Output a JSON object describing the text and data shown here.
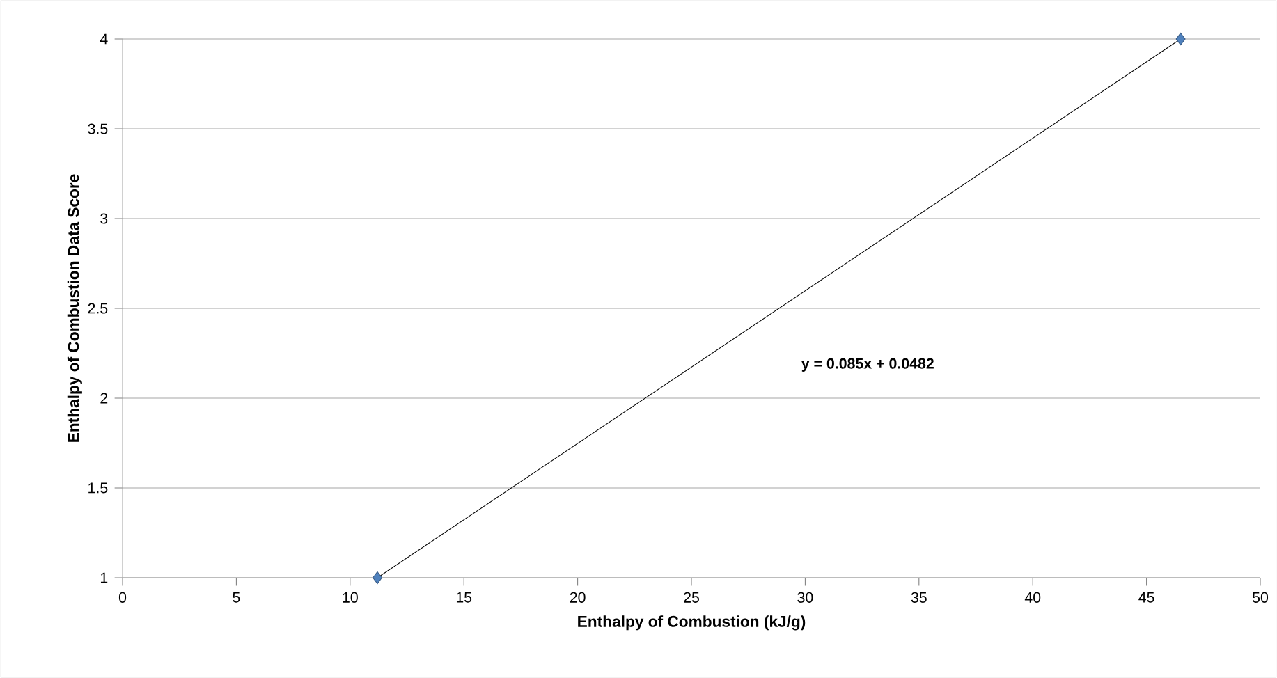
{
  "chart_data": {
    "type": "line",
    "xlabel": "Enthalpy of Combustion (kJ/g)",
    "ylabel": "Enthalpy of Combustion Data Score",
    "series": [
      {
        "color": "#000000",
        "colors": [
          "#4f81bd",
          "#4f81bd"
        ],
        "marker": "diamond",
        "line_style": "solid",
        "x": [
          11.2,
          46.5
        ],
        "values": [
          1,
          4
        ]
      }
    ],
    "xlim": [
      0,
      50
    ],
    "xticks": [
      0,
      5,
      10,
      15,
      20,
      25,
      30,
      35,
      40,
      45,
      50
    ],
    "ylim": [
      1,
      4
    ],
    "yticks": [
      1,
      1.5,
      2,
      2.5,
      3,
      3.5,
      4
    ],
    "grid": "y",
    "annotations": [
      "y = 0.085x + 0.0482"
    ]
  }
}
